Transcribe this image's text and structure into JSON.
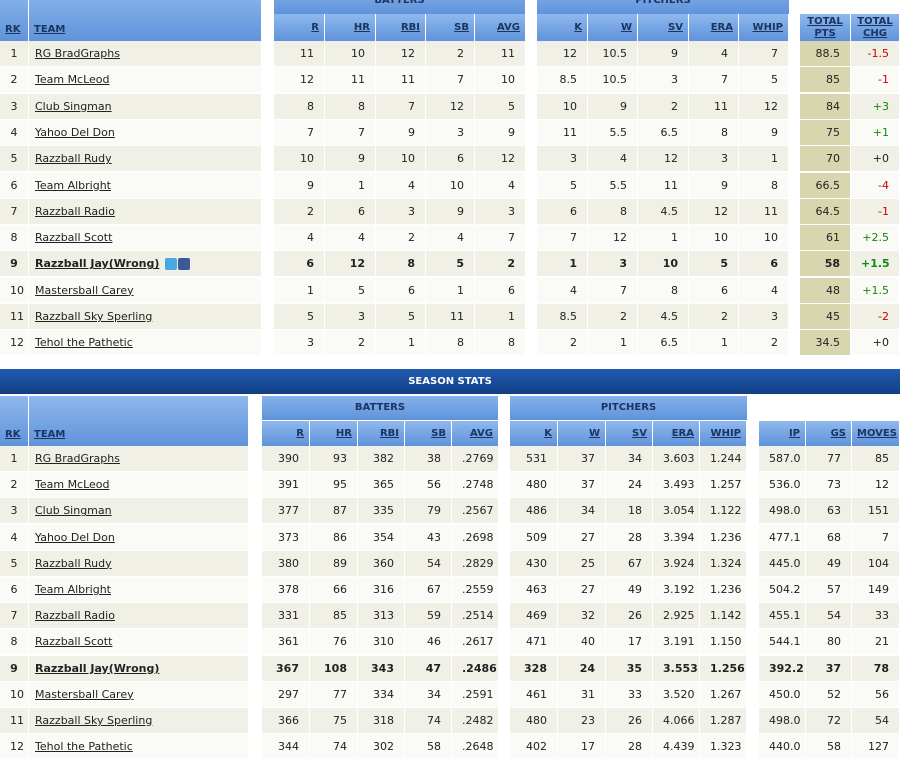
{
  "standings": {
    "groups": [
      "BATTERS",
      "PITCHERS"
    ],
    "headers": [
      "RK",
      "TEAM",
      "R",
      "HR",
      "RBI",
      "SB",
      "AVG",
      "K",
      "W",
      "SV",
      "ERA",
      "WHIP",
      "TOTAL PTS",
      "TOTAL CHG"
    ],
    "rows": [
      [
        "1",
        "RG BradGraphs",
        "11",
        "10",
        "12",
        "2",
        "11",
        "12",
        "10.5",
        "9",
        "4",
        "7",
        "88.5",
        "-1.5"
      ],
      [
        "2",
        "Team McLeod",
        "12",
        "11",
        "11",
        "7",
        "10",
        "8.5",
        "10.5",
        "3",
        "7",
        "5",
        "85",
        "-1"
      ],
      [
        "3",
        "Club Singman",
        "8",
        "8",
        "7",
        "12",
        "5",
        "10",
        "9",
        "2",
        "11",
        "12",
        "84",
        "+3"
      ],
      [
        "4",
        "Yahoo Del Don",
        "7",
        "7",
        "9",
        "3",
        "9",
        "11",
        "5.5",
        "6.5",
        "8",
        "9",
        "75",
        "+1"
      ],
      [
        "5",
        "Razzball Rudy",
        "10",
        "9",
        "10",
        "6",
        "12",
        "3",
        "4",
        "12",
        "3",
        "1",
        "70",
        "+0"
      ],
      [
        "6",
        "Team Albright",
        "9",
        "1",
        "4",
        "10",
        "4",
        "5",
        "5.5",
        "11",
        "9",
        "8",
        "66.5",
        "-4"
      ],
      [
        "7",
        "Razzball Radio",
        "2",
        "6",
        "3",
        "9",
        "3",
        "6",
        "8",
        "4.5",
        "12",
        "11",
        "64.5",
        "-1"
      ],
      [
        "8",
        "Razzball Scott",
        "4",
        "4",
        "2",
        "4",
        "7",
        "7",
        "12",
        "1",
        "10",
        "10",
        "61",
        "+2.5"
      ],
      [
        "9",
        "Razzball Jay(Wrong)",
        "6",
        "12",
        "8",
        "5",
        "2",
        "1",
        "3",
        "10",
        "5",
        "6",
        "58",
        "+1.5"
      ],
      [
        "10",
        "Mastersball Carey",
        "1",
        "5",
        "6",
        "1",
        "6",
        "4",
        "7",
        "8",
        "6",
        "4",
        "48",
        "+1.5"
      ],
      [
        "11",
        "Razzball Sky Sperling",
        "5",
        "3",
        "5",
        "11",
        "1",
        "8.5",
        "2",
        "4.5",
        "2",
        "3",
        "45",
        "-2"
      ],
      [
        "12",
        "Tehol the Pathetic",
        "3",
        "2",
        "1",
        "8",
        "8",
        "2",
        "1",
        "6.5",
        "1",
        "2",
        "34.5",
        "+0"
      ]
    ]
  },
  "season_stats": {
    "title": "SEASON STATS",
    "groups": [
      "BATTERS",
      "PITCHERS"
    ],
    "headers": [
      "RK",
      "TEAM",
      "R",
      "HR",
      "RBI",
      "SB",
      "AVG",
      "K",
      "W",
      "SV",
      "ERA",
      "WHIP",
      "IP",
      "GS",
      "MOVES"
    ],
    "rows": [
      [
        "1",
        "RG BradGraphs",
        "390",
        "93",
        "382",
        "38",
        ".2769",
        "531",
        "37",
        "34",
        "3.603",
        "1.244",
        "587.0",
        "77",
        "85"
      ],
      [
        "2",
        "Team McLeod",
        "391",
        "95",
        "365",
        "56",
        ".2748",
        "480",
        "37",
        "24",
        "3.493",
        "1.257",
        "536.0",
        "73",
        "12"
      ],
      [
        "3",
        "Club Singman",
        "377",
        "87",
        "335",
        "79",
        ".2567",
        "486",
        "34",
        "18",
        "3.054",
        "1.122",
        "498.0",
        "63",
        "151"
      ],
      [
        "4",
        "Yahoo Del Don",
        "373",
        "86",
        "354",
        "43",
        ".2698",
        "509",
        "27",
        "28",
        "3.394",
        "1.236",
        "477.1",
        "68",
        "7"
      ],
      [
        "5",
        "Razzball Rudy",
        "380",
        "89",
        "360",
        "54",
        ".2829",
        "430",
        "25",
        "67",
        "3.924",
        "1.324",
        "445.0",
        "49",
        "104"
      ],
      [
        "6",
        "Team Albright",
        "378",
        "66",
        "316",
        "67",
        ".2559",
        "463",
        "27",
        "49",
        "3.192",
        "1.236",
        "504.2",
        "57",
        "149"
      ],
      [
        "7",
        "Razzball Radio",
        "331",
        "85",
        "313",
        "59",
        ".2514",
        "469",
        "32",
        "26",
        "2.925",
        "1.142",
        "455.1",
        "54",
        "33"
      ],
      [
        "8",
        "Razzball Scott",
        "361",
        "76",
        "310",
        "46",
        ".2617",
        "471",
        "40",
        "17",
        "3.191",
        "1.150",
        "544.1",
        "80",
        "21"
      ],
      [
        "9",
        "Razzball Jay(Wrong)",
        "367",
        "108",
        "343",
        "47",
        ".2486",
        "328",
        "24",
        "35",
        "3.553",
        "1.256",
        "392.2",
        "37",
        "78"
      ],
      [
        "10",
        "Mastersball Carey",
        "297",
        "77",
        "334",
        "34",
        ".2591",
        "461",
        "31",
        "33",
        "3.520",
        "1.267",
        "450.0",
        "52",
        "56"
      ],
      [
        "11",
        "Razzball Sky Sperling",
        "366",
        "75",
        "318",
        "74",
        ".2482",
        "480",
        "23",
        "26",
        "4.066",
        "1.287",
        "498.0",
        "72",
        "54"
      ],
      [
        "12",
        "Tehol the Pathetic",
        "344",
        "74",
        "302",
        "58",
        ".2648",
        "402",
        "17",
        "28",
        "4.439",
        "1.323",
        "440.0",
        "58",
        "127"
      ]
    ]
  }
}
